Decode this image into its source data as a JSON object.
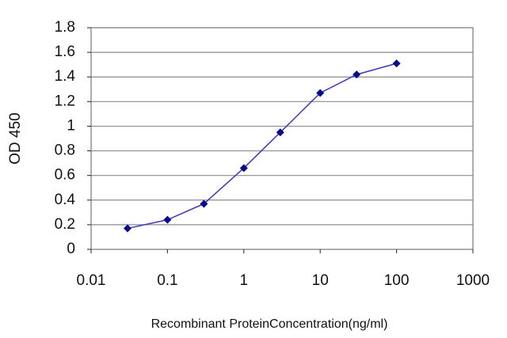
{
  "chart_data": {
    "type": "line",
    "x_label": "Recombinant ProteinConcentration(ng/ml)",
    "y_label": "OD 450",
    "x": [
      0.03,
      0.1,
      0.3,
      1,
      3,
      10,
      30,
      100
    ],
    "values": [
      0.17,
      0.24,
      0.37,
      0.66,
      0.95,
      1.27,
      1.42,
      1.51
    ],
    "color": "#3a3ab8",
    "marker_color": "#0a0a8c",
    "xscale": "log",
    "xlim": [
      0.01,
      1000
    ],
    "xticks": [
      0.01,
      0.1,
      1,
      10,
      100,
      1000
    ],
    "ylim": [
      0,
      1.8
    ],
    "yticks": [
      0,
      0.2,
      0.4,
      0.6,
      0.8,
      1,
      1.2,
      1.4,
      1.6,
      1.8
    ],
    "grid": true
  }
}
